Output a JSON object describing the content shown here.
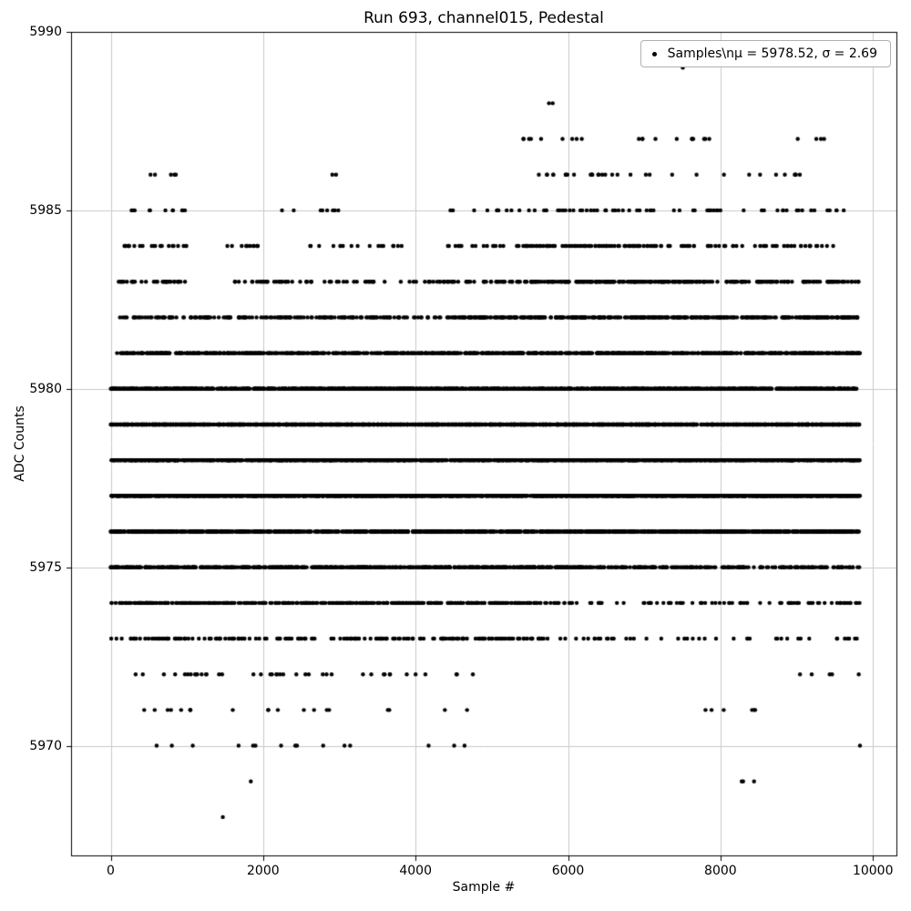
{
  "chart_data": {
    "type": "scatter",
    "title": "Run 693, channel015, Pedestal",
    "xlabel": "Sample #",
    "ylabel": "ADC Counts",
    "legend_label": "Samples\\nμ = 5978.52, σ = 2.69",
    "mu": 5978.52,
    "sigma": 2.69,
    "n_samples_approx": 9830,
    "marker_color": "#000000",
    "grid": true,
    "grid_color": "#c9c9c9",
    "legend_position": "upper right",
    "xlim": [
      -520,
      10320
    ],
    "ylim": [
      5966.9,
      5990
    ],
    "xticks": [
      0,
      2000,
      4000,
      6000,
      8000,
      10000
    ],
    "xtick_labels": [
      "0",
      "2000",
      "4000",
      "6000",
      "8000",
      "10000"
    ],
    "yticks": [
      5970,
      5975,
      5980,
      5985,
      5990
    ],
    "ytick_labels": [
      "5970",
      "5975",
      "5980",
      "5985",
      "5990"
    ],
    "bands": [
      {
        "adc": 5989,
        "count": 1,
        "x_segments": [
          [
            7480,
            7540,
            1
          ]
        ]
      },
      {
        "adc": 5988,
        "count": 2,
        "x_segments": [
          [
            5740,
            5890,
            1
          ]
        ]
      },
      {
        "adc": 5987,
        "count": 24,
        "x_segments": [
          [
            5300,
            7900,
            0.85
          ],
          [
            8800,
            9750,
            0.15
          ]
        ]
      },
      {
        "adc": 5986,
        "count": 40,
        "x_segments": [
          [
            520,
            960,
            0.12
          ],
          [
            2880,
            2960,
            0.04
          ],
          [
            5550,
            6700,
            0.45
          ],
          [
            6800,
            9050,
            0.39
          ]
        ]
      },
      {
        "adc": 5985,
        "count": 90,
        "x_segments": [
          [
            250,
            1000,
            0.12
          ],
          [
            2200,
            3000,
            0.06
          ],
          [
            4400,
            5600,
            0.15
          ],
          [
            5600,
            8200,
            0.5
          ],
          [
            8200,
            9700,
            0.17
          ]
        ]
      },
      {
        "adc": 5984,
        "count": 200,
        "x_segments": [
          [
            150,
            1000,
            0.1
          ],
          [
            1500,
            2000,
            0.04
          ],
          [
            2400,
            3600,
            0.1
          ],
          [
            3700,
            3820,
            0.02
          ],
          [
            4400,
            5200,
            0.1
          ],
          [
            5300,
            7000,
            0.34
          ],
          [
            7000,
            8600,
            0.2
          ],
          [
            8600,
            9500,
            0.1
          ]
        ]
      },
      {
        "adc": 5983,
        "count": 380,
        "x_segments": [
          [
            100,
            1000,
            0.08
          ],
          [
            1600,
            3500,
            0.12
          ],
          [
            3500,
            4300,
            0.04
          ],
          [
            4300,
            5400,
            0.12
          ],
          [
            5400,
            7800,
            0.4
          ],
          [
            7800,
            9830,
            0.24
          ]
        ]
      },
      {
        "adc": 5982,
        "count": 620,
        "x_segments": [
          [
            80,
            2000,
            0.12
          ],
          [
            2000,
            4500,
            0.18
          ],
          [
            4500,
            9830,
            0.7
          ]
        ]
      },
      {
        "adc": 5981,
        "count": 960,
        "x_segments": [
          [
            80,
            9830,
            1
          ]
        ]
      },
      {
        "adc": 5980,
        "count": 1320,
        "x_segments": [
          [
            0,
            9830,
            1
          ]
        ]
      },
      {
        "adc": 5979,
        "count": 1560,
        "x_segments": [
          [
            0,
            9830,
            1
          ]
        ]
      },
      {
        "adc": 5978,
        "count": 1560,
        "x_segments": [
          [
            0,
            9830,
            1
          ]
        ]
      },
      {
        "adc": 5977,
        "count": 1500,
        "x_segments": [
          [
            0,
            9830,
            1
          ]
        ]
      },
      {
        "adc": 5976,
        "count": 1260,
        "x_segments": [
          [
            0,
            9830,
            1
          ]
        ]
      },
      {
        "adc": 5975,
        "count": 860,
        "x_segments": [
          [
            0,
            6300,
            0.75
          ],
          [
            6300,
            9830,
            0.25
          ]
        ]
      },
      {
        "adc": 5974,
        "count": 480,
        "x_segments": [
          [
            0,
            5600,
            0.8
          ],
          [
            5600,
            9830,
            0.2
          ]
        ]
      },
      {
        "adc": 5973,
        "count": 235,
        "x_segments": [
          [
            0,
            5700,
            0.8
          ],
          [
            5700,
            9830,
            0.2
          ]
        ]
      },
      {
        "adc": 5972,
        "count": 46,
        "x_segments": [
          [
            200,
            4800,
            0.88
          ],
          [
            8500,
            9830,
            0.12
          ]
        ]
      },
      {
        "adc": 5971,
        "count": 26,
        "x_segments": [
          [
            150,
            4700,
            0.8
          ],
          [
            7400,
            8500,
            0.2
          ]
        ]
      },
      {
        "adc": 5970,
        "count": 16,
        "x_segments": [
          [
            50,
            4700,
            0.95
          ],
          [
            9780,
            9840,
            0.05
          ]
        ]
      },
      {
        "adc": 5969,
        "count": 4,
        "x_segments": [
          [
            1400,
            1850,
            0.5
          ],
          [
            8100,
            8450,
            0.5
          ]
        ]
      },
      {
        "adc": 5968,
        "count": 1,
        "x_segments": [
          [
            1430,
            1480,
            1
          ]
        ]
      }
    ]
  }
}
